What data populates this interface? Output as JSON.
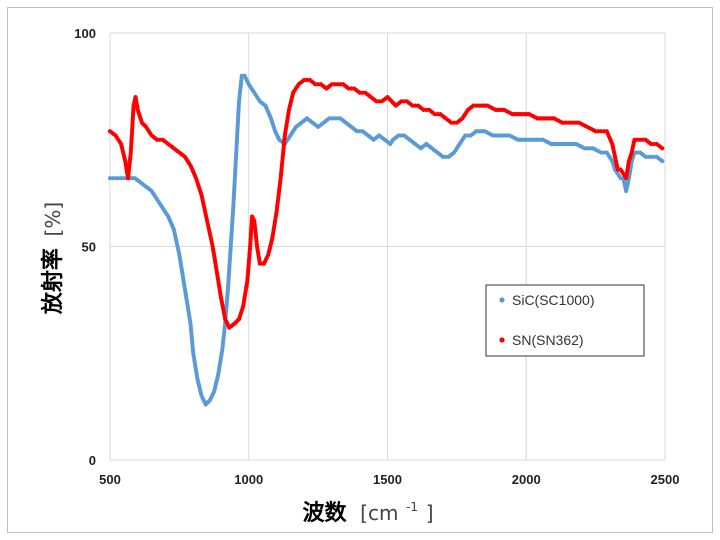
{
  "chart_data": {
    "type": "scatter",
    "xlabel_main": "波数",
    "xlabel_unit": "[cm",
    "xlabel_exp": "-1",
    "xlabel_close": "]",
    "ylabel_main": "放射率",
    "ylabel_unit": "[%]",
    "xlim": [
      500,
      2500
    ],
    "ylim": [
      0,
      100
    ],
    "xticks": [
      "500",
      "1000",
      "1500",
      "2000",
      "2500"
    ],
    "yticks": [
      "0",
      "50",
      "100"
    ],
    "grid": true,
    "legend_position": "right",
    "series": [
      {
        "name": "SiC(SC1000)",
        "color": "#5b9bd5",
        "points": [
          [
            500,
            66
          ],
          [
            520,
            66
          ],
          [
            540,
            66
          ],
          [
            560,
            66
          ],
          [
            575,
            66
          ],
          [
            590,
            66
          ],
          [
            610,
            65
          ],
          [
            630,
            64
          ],
          [
            650,
            63
          ],
          [
            670,
            61
          ],
          [
            690,
            59
          ],
          [
            710,
            57
          ],
          [
            730,
            54
          ],
          [
            750,
            48
          ],
          [
            770,
            40
          ],
          [
            790,
            32
          ],
          [
            800,
            25
          ],
          [
            815,
            19
          ],
          [
            830,
            15
          ],
          [
            845,
            13
          ],
          [
            860,
            14
          ],
          [
            875,
            16
          ],
          [
            890,
            20
          ],
          [
            905,
            26
          ],
          [
            915,
            32
          ],
          [
            925,
            40
          ],
          [
            935,
            50
          ],
          [
            945,
            60
          ],
          [
            955,
            72
          ],
          [
            965,
            84
          ],
          [
            975,
            90
          ],
          [
            985,
            90
          ],
          [
            1000,
            88
          ],
          [
            1020,
            86
          ],
          [
            1040,
            84
          ],
          [
            1060,
            83
          ],
          [
            1080,
            80
          ],
          [
            1095,
            77
          ],
          [
            1110,
            75
          ],
          [
            1130,
            74
          ],
          [
            1150,
            76
          ],
          [
            1170,
            78
          ],
          [
            1190,
            79
          ],
          [
            1210,
            80
          ],
          [
            1230,
            79
          ],
          [
            1250,
            78
          ],
          [
            1270,
            79
          ],
          [
            1290,
            80
          ],
          [
            1310,
            80
          ],
          [
            1330,
            80
          ],
          [
            1350,
            79
          ],
          [
            1370,
            78
          ],
          [
            1390,
            77
          ],
          [
            1410,
            77
          ],
          [
            1430,
            76
          ],
          [
            1450,
            75
          ],
          [
            1470,
            76
          ],
          [
            1490,
            75
          ],
          [
            1510,
            74
          ],
          [
            1520,
            75
          ],
          [
            1540,
            76
          ],
          [
            1560,
            76
          ],
          [
            1580,
            75
          ],
          [
            1600,
            74
          ],
          [
            1620,
            73
          ],
          [
            1640,
            74
          ],
          [
            1660,
            73
          ],
          [
            1680,
            72
          ],
          [
            1700,
            71
          ],
          [
            1720,
            71
          ],
          [
            1740,
            72
          ],
          [
            1760,
            74
          ],
          [
            1780,
            76
          ],
          [
            1800,
            76
          ],
          [
            1820,
            77
          ],
          [
            1850,
            77
          ],
          [
            1880,
            76
          ],
          [
            1910,
            76
          ],
          [
            1940,
            76
          ],
          [
            1970,
            75
          ],
          [
            2000,
            75
          ],
          [
            2030,
            75
          ],
          [
            2060,
            75
          ],
          [
            2090,
            74
          ],
          [
            2120,
            74
          ],
          [
            2150,
            74
          ],
          [
            2180,
            74
          ],
          [
            2210,
            73
          ],
          [
            2240,
            73
          ],
          [
            2270,
            72
          ],
          [
            2290,
            72
          ],
          [
            2300,
            71
          ],
          [
            2310,
            70
          ],
          [
            2320,
            68
          ],
          [
            2330,
            67
          ],
          [
            2340,
            66
          ],
          [
            2350,
            66
          ],
          [
            2360,
            63
          ],
          [
            2370,
            66
          ],
          [
            2380,
            70
          ],
          [
            2390,
            72
          ],
          [
            2410,
            72
          ],
          [
            2430,
            71
          ],
          [
            2450,
            71
          ],
          [
            2470,
            71
          ],
          [
            2490,
            70
          ]
        ]
      },
      {
        "name": "SN(SN362)",
        "color": "#ff0000",
        "points": [
          [
            500,
            77
          ],
          [
            520,
            76
          ],
          [
            540,
            74
          ],
          [
            555,
            70
          ],
          [
            565,
            66
          ],
          [
            575,
            72
          ],
          [
            585,
            83
          ],
          [
            592,
            85
          ],
          [
            600,
            82
          ],
          [
            615,
            79
          ],
          [
            630,
            78
          ],
          [
            650,
            76
          ],
          [
            670,
            75
          ],
          [
            690,
            75
          ],
          [
            710,
            74
          ],
          [
            730,
            73
          ],
          [
            750,
            72
          ],
          [
            770,
            71
          ],
          [
            790,
            69
          ],
          [
            810,
            66
          ],
          [
            830,
            62
          ],
          [
            850,
            56
          ],
          [
            870,
            50
          ],
          [
            885,
            44
          ],
          [
            900,
            38
          ],
          [
            915,
            33
          ],
          [
            930,
            31
          ],
          [
            950,
            32
          ],
          [
            965,
            33
          ],
          [
            980,
            36
          ],
          [
            995,
            42
          ],
          [
            1005,
            50
          ],
          [
            1012,
            57
          ],
          [
            1020,
            56
          ],
          [
            1030,
            50
          ],
          [
            1040,
            46
          ],
          [
            1055,
            46
          ],
          [
            1070,
            48
          ],
          [
            1085,
            52
          ],
          [
            1100,
            58
          ],
          [
            1115,
            66
          ],
          [
            1130,
            76
          ],
          [
            1145,
            82
          ],
          [
            1160,
            86
          ],
          [
            1180,
            88
          ],
          [
            1200,
            89
          ],
          [
            1220,
            89
          ],
          [
            1240,
            88
          ],
          [
            1260,
            88
          ],
          [
            1280,
            87
          ],
          [
            1300,
            88
          ],
          [
            1320,
            88
          ],
          [
            1340,
            88
          ],
          [
            1360,
            87
          ],
          [
            1380,
            87
          ],
          [
            1400,
            86
          ],
          [
            1420,
            86
          ],
          [
            1440,
            85
          ],
          [
            1460,
            84
          ],
          [
            1480,
            84
          ],
          [
            1500,
            85
          ],
          [
            1515,
            84
          ],
          [
            1530,
            83
          ],
          [
            1550,
            84
          ],
          [
            1570,
            84
          ],
          [
            1590,
            83
          ],
          [
            1610,
            83
          ],
          [
            1630,
            82
          ],
          [
            1650,
            82
          ],
          [
            1670,
            81
          ],
          [
            1690,
            81
          ],
          [
            1710,
            80
          ],
          [
            1730,
            79
          ],
          [
            1750,
            79
          ],
          [
            1770,
            80
          ],
          [
            1790,
            82
          ],
          [
            1810,
            83
          ],
          [
            1830,
            83
          ],
          [
            1860,
            83
          ],
          [
            1890,
            82
          ],
          [
            1920,
            82
          ],
          [
            1950,
            81
          ],
          [
            1980,
            81
          ],
          [
            2010,
            81
          ],
          [
            2040,
            80
          ],
          [
            2070,
            80
          ],
          [
            2100,
            80
          ],
          [
            2130,
            79
          ],
          [
            2160,
            79
          ],
          [
            2190,
            79
          ],
          [
            2220,
            78
          ],
          [
            2250,
            77
          ],
          [
            2270,
            77
          ],
          [
            2290,
            77
          ],
          [
            2310,
            74
          ],
          [
            2320,
            71
          ],
          [
            2330,
            68
          ],
          [
            2340,
            68
          ],
          [
            2350,
            67
          ],
          [
            2360,
            66
          ],
          [
            2370,
            70
          ],
          [
            2380,
            72
          ],
          [
            2390,
            75
          ],
          [
            2410,
            75
          ],
          [
            2430,
            75
          ],
          [
            2450,
            74
          ],
          [
            2470,
            74
          ],
          [
            2490,
            73
          ]
        ]
      }
    ]
  }
}
